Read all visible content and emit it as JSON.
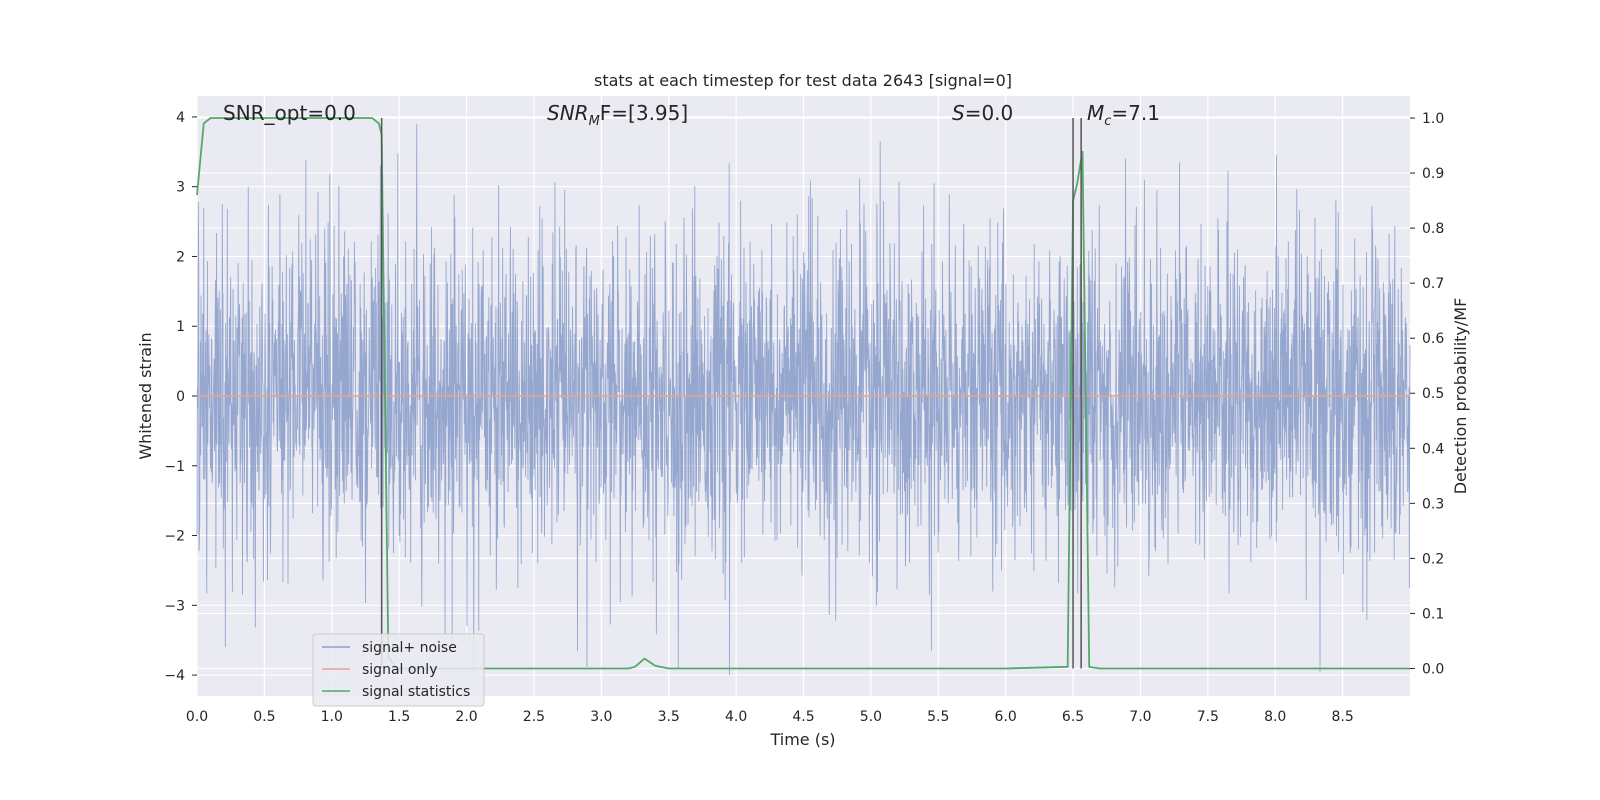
{
  "chart_data": {
    "type": "line",
    "title": "stats at each timestep for test data 2643 [signal=0]",
    "xlabel": "Time (s)",
    "ylabel": "Whitened strain",
    "ylabel_right": "Detection probability/MF",
    "xlim": [
      0.0,
      9.0
    ],
    "ylim": [
      -4.3,
      4.3
    ],
    "ylim_right": [
      -0.05,
      1.04
    ],
    "x_ticks": [
      "0.0",
      "0.5",
      "1.0",
      "1.5",
      "2.0",
      "2.5",
      "3.0",
      "3.5",
      "4.0",
      "4.5",
      "5.0",
      "5.5",
      "6.0",
      "6.5",
      "7.0",
      "7.5",
      "8.0",
      "8.5"
    ],
    "y_ticks": [
      "−4",
      "−3",
      "−2",
      "−1",
      "0",
      "1",
      "2",
      "3",
      "4"
    ],
    "y_ticks_right": [
      "0.0",
      "0.1",
      "0.2",
      "0.3",
      "0.4",
      "0.5",
      "0.6",
      "0.7",
      "0.8",
      "0.9",
      "1.0"
    ],
    "annotations": {
      "snr_opt": "SNR_opt=0.0",
      "snr_mf_main": "SNR",
      "snr_mf_sub": "M",
      "snr_mf_rest": "F=[3.95]",
      "s_main": "S",
      "s_rest": "=0.0",
      "mc_main": "M",
      "mc_sub": "c",
      "mc_rest": "=7.1"
    },
    "legend": {
      "placement": "lower-left",
      "entries": [
        "signal+ noise",
        "signal only",
        "signal statistics"
      ]
    },
    "grid": true,
    "colors": {
      "noise": "#8da0cb",
      "signal": "#e5a68c",
      "stats": "#55a868",
      "vline": "#555555",
      "background": "#eaeaf2"
    },
    "series": [
      {
        "name": "signal+ noise",
        "axis": "left",
        "description_of_values": "whitened strain noise, amplitude mostly within ±2 with spikes to about ±4",
        "x_range": [
          0.0,
          9.0
        ],
        "typical_amplitude": 1.3,
        "peak_values": [
          {
            "x": 0.05,
            "y": 2.7
          },
          {
            "x": 0.38,
            "y": 3.0
          },
          {
            "x": 0.21,
            "y": -3.6
          },
          {
            "x": 1.36,
            "y": 3.3
          },
          {
            "x": 1.63,
            "y": 3.9
          },
          {
            "x": 1.84,
            "y": -3.4
          },
          {
            "x": 3.95,
            "y": 3.65
          },
          {
            "x": 3.95,
            "y": -4.0
          },
          {
            "x": 3.57,
            "y": -3.9
          },
          {
            "x": 5.07,
            "y": 3.65
          },
          {
            "x": 5.45,
            "y": -3.65
          },
          {
            "x": 6.89,
            "y": 3.4
          },
          {
            "x": 7.29,
            "y": 3.35
          },
          {
            "x": 8.01,
            "y": 3.45
          },
          {
            "x": 8.65,
            "y": -3.1
          }
        ]
      },
      {
        "name": "signal only",
        "axis": "left",
        "x": [
          0.0,
          9.0
        ],
        "y": [
          0.0,
          0.0
        ]
      },
      {
        "name": "signal statistics",
        "axis": "right",
        "x": [
          0.0,
          0.05,
          0.1,
          0.2,
          0.5,
          1.0,
          1.3,
          1.35,
          1.37,
          1.42,
          1.48,
          1.6,
          2.0,
          3.0,
          3.2,
          3.25,
          3.32,
          3.4,
          3.5,
          4.0,
          6.0,
          6.46,
          6.5,
          6.53,
          6.57,
          6.62,
          6.7,
          7.0,
          9.0
        ],
        "y": [
          0.86,
          0.99,
          1.0,
          1.0,
          1.0,
          1.0,
          1.0,
          0.99,
          0.97,
          0.02,
          0.0,
          0.0,
          0.0,
          0.0,
          0.0,
          0.003,
          0.018,
          0.005,
          0.0,
          0.0,
          0.0,
          0.003,
          0.85,
          0.88,
          0.94,
          0.003,
          0.0,
          0.0,
          0.0
        ]
      }
    ],
    "vertical_lines": [
      1.37,
      6.5,
      6.56
    ]
  }
}
